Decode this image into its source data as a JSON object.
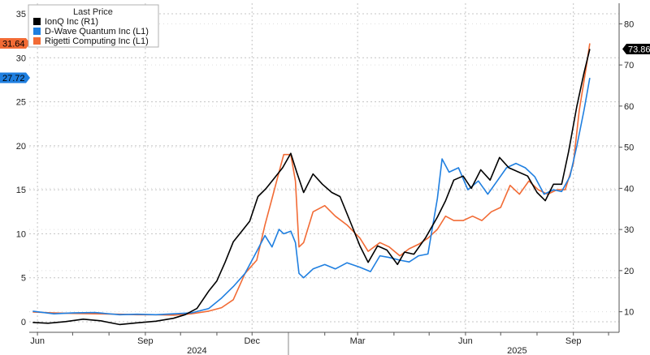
{
  "chart_data": {
    "type": "line",
    "legend": {
      "title": "Last Price",
      "placement": "top-left",
      "entries": [
        {
          "label": "IonQ Inc  (R1)",
          "color": "#000000"
        },
        {
          "label": "D-Wave Quantum Inc  (L1)",
          "color": "#1f7fe0"
        },
        {
          "label": "Rigetti Computing Inc  (L1)",
          "color": "#f26b35"
        }
      ]
    },
    "x_ticks": [
      {
        "date": "2024-06-01",
        "label": "Jun"
      },
      {
        "date": "2024-09-01",
        "label": "Sep"
      },
      {
        "date": "2024-12-01",
        "label": "Dec"
      },
      {
        "date": "2025-03-01",
        "label": "Mar"
      },
      {
        "date": "2025-06-01",
        "label": "Jun"
      },
      {
        "date": "2025-09-01",
        "label": "Sep"
      }
    ],
    "year_labels": [
      {
        "date": "2024-10-15",
        "label": "2024"
      },
      {
        "date": "2025-07-15",
        "label": "2025"
      }
    ],
    "xlim": [
      "2024-05-25",
      "2025-10-10"
    ],
    "ylim_left": [
      -1.2,
      36.2
    ],
    "yticks_left": [
      0,
      5,
      10,
      15,
      20,
      25,
      30,
      35
    ],
    "ylim_right": [
      5,
      85
    ],
    "yticks_right": [
      10,
      20,
      30,
      40,
      50,
      60,
      70,
      80
    ],
    "grid": true,
    "last_values": [
      {
        "series": "Rigetti Computing Inc",
        "label": "31.64",
        "side": "left",
        "value": 31.64,
        "color": "#f26b35"
      },
      {
        "series": "D-Wave Quantum Inc",
        "label": "27.72",
        "side": "left",
        "value": 27.72,
        "color": "#1f7fe0"
      },
      {
        "series": "IonQ Inc",
        "label": "73.86",
        "side": "right",
        "value": 73.86,
        "color": "#000000"
      }
    ],
    "series": [
      {
        "name": "IonQ Inc",
        "axis": "right",
        "color": "#000000",
        "points": [
          [
            "2024-05-28",
            7.4
          ],
          [
            "2024-06-10",
            7.2
          ],
          [
            "2024-06-25",
            7.6
          ],
          [
            "2024-07-10",
            8.2
          ],
          [
            "2024-07-25",
            7.8
          ],
          [
            "2024-08-10",
            6.9
          ],
          [
            "2024-08-25",
            7.3
          ],
          [
            "2024-09-10",
            7.7
          ],
          [
            "2024-09-25",
            8.4
          ],
          [
            "2024-10-05",
            9.3
          ],
          [
            "2024-10-15",
            10.8
          ],
          [
            "2024-10-25",
            15.0
          ],
          [
            "2024-11-01",
            17.5
          ],
          [
            "2024-11-08",
            22.0
          ],
          [
            "2024-11-15",
            27.0
          ],
          [
            "2024-11-22",
            29.5
          ],
          [
            "2024-11-29",
            32.0
          ],
          [
            "2024-12-06",
            38.0
          ],
          [
            "2024-12-13",
            40.0
          ],
          [
            "2024-12-20",
            42.5
          ],
          [
            "2024-12-27",
            45.0
          ],
          [
            "2025-01-03",
            48.5
          ],
          [
            "2025-01-08",
            44.0
          ],
          [
            "2025-01-14",
            39.0
          ],
          [
            "2025-01-22",
            43.5
          ],
          [
            "2025-01-30",
            41.0
          ],
          [
            "2025-02-07",
            39.0
          ],
          [
            "2025-02-14",
            38.0
          ],
          [
            "2025-02-24",
            31.0
          ],
          [
            "2025-03-03",
            26.0
          ],
          [
            "2025-03-10",
            22.0
          ],
          [
            "2025-03-18",
            26.0
          ],
          [
            "2025-03-26",
            25.0
          ],
          [
            "2025-04-04",
            21.5
          ],
          [
            "2025-04-10",
            24.5
          ],
          [
            "2025-04-18",
            24.0
          ],
          [
            "2025-04-28",
            28.0
          ],
          [
            "2025-05-08",
            33.0
          ],
          [
            "2025-05-15",
            37.0
          ],
          [
            "2025-05-22",
            42.0
          ],
          [
            "2025-05-30",
            43.0
          ],
          [
            "2025-06-06",
            40.0
          ],
          [
            "2025-06-14",
            44.5
          ],
          [
            "2025-06-22",
            42.0
          ],
          [
            "2025-06-30",
            47.5
          ],
          [
            "2025-07-08",
            45.0
          ],
          [
            "2025-07-16",
            44.0
          ],
          [
            "2025-07-24",
            43.0
          ],
          [
            "2025-08-01",
            39.0
          ],
          [
            "2025-08-08",
            37.0
          ],
          [
            "2025-08-15",
            41.0
          ],
          [
            "2025-08-22",
            41.0
          ],
          [
            "2025-08-28",
            49.0
          ],
          [
            "2025-09-04",
            60.0
          ],
          [
            "2025-09-10",
            68.0
          ],
          [
            "2025-09-15",
            73.86
          ]
        ]
      },
      {
        "name": "D-Wave Quantum Inc",
        "axis": "left",
        "color": "#1f7fe0",
        "points": [
          [
            "2024-05-28",
            1.2
          ],
          [
            "2024-06-15",
            0.9
          ],
          [
            "2024-07-01",
            1.0
          ],
          [
            "2024-07-20",
            1.05
          ],
          [
            "2024-08-10",
            0.8
          ],
          [
            "2024-08-25",
            0.85
          ],
          [
            "2024-09-10",
            0.8
          ],
          [
            "2024-09-25",
            0.9
          ],
          [
            "2024-10-10",
            1.0
          ],
          [
            "2024-10-25",
            1.5
          ],
          [
            "2024-11-05",
            2.7
          ],
          [
            "2024-11-15",
            4.0
          ],
          [
            "2024-11-25",
            5.5
          ],
          [
            "2024-12-05",
            8.0
          ],
          [
            "2024-12-12",
            9.8
          ],
          [
            "2024-12-18",
            8.5
          ],
          [
            "2024-12-24",
            10.5
          ],
          [
            "2024-12-28",
            10.0
          ],
          [
            "2025-01-03",
            10.3
          ],
          [
            "2025-01-07",
            9.0
          ],
          [
            "2025-01-10",
            5.5
          ],
          [
            "2025-01-14",
            5.0
          ],
          [
            "2025-01-22",
            6.0
          ],
          [
            "2025-02-01",
            6.5
          ],
          [
            "2025-02-10",
            6.0
          ],
          [
            "2025-02-20",
            6.7
          ],
          [
            "2025-03-03",
            6.2
          ],
          [
            "2025-03-12",
            5.7
          ],
          [
            "2025-03-20",
            7.5
          ],
          [
            "2025-03-28",
            7.3
          ],
          [
            "2025-04-06",
            7.0
          ],
          [
            "2025-04-14",
            6.8
          ],
          [
            "2025-04-22",
            7.5
          ],
          [
            "2025-04-30",
            7.7
          ],
          [
            "2025-05-08",
            14.0
          ],
          [
            "2025-05-12",
            18.5
          ],
          [
            "2025-05-18",
            17.0
          ],
          [
            "2025-05-26",
            17.5
          ],
          [
            "2025-06-03",
            15.0
          ],
          [
            "2025-06-12",
            16.0
          ],
          [
            "2025-06-20",
            14.5
          ],
          [
            "2025-06-28",
            16.0
          ],
          [
            "2025-07-06",
            17.5
          ],
          [
            "2025-07-14",
            18.0
          ],
          [
            "2025-07-22",
            17.5
          ],
          [
            "2025-07-30",
            16.5
          ],
          [
            "2025-08-07",
            14.5
          ],
          [
            "2025-08-15",
            15.0
          ],
          [
            "2025-08-22",
            14.8
          ],
          [
            "2025-08-29",
            16.5
          ],
          [
            "2025-09-04",
            20.0
          ],
          [
            "2025-09-10",
            24.0
          ],
          [
            "2025-09-15",
            27.72
          ]
        ]
      },
      {
        "name": "Rigetti Computing Inc",
        "axis": "left",
        "color": "#f26b35",
        "points": [
          [
            "2024-05-28",
            1.1
          ],
          [
            "2024-06-15",
            1.0
          ],
          [
            "2024-07-01",
            0.95
          ],
          [
            "2024-07-20",
            0.9
          ],
          [
            "2024-08-10",
            0.85
          ],
          [
            "2024-08-25",
            0.8
          ],
          [
            "2024-09-10",
            0.8
          ],
          [
            "2024-09-25",
            0.75
          ],
          [
            "2024-10-10",
            0.9
          ],
          [
            "2024-10-25",
            1.2
          ],
          [
            "2024-11-05",
            1.6
          ],
          [
            "2024-11-15",
            2.5
          ],
          [
            "2024-11-25",
            5.5
          ],
          [
            "2024-12-05",
            7.0
          ],
          [
            "2024-12-12",
            11.0
          ],
          [
            "2024-12-18",
            14.0
          ],
          [
            "2024-12-24",
            17.0
          ],
          [
            "2024-12-28",
            19.0
          ],
          [
            "2025-01-03",
            19.0
          ],
          [
            "2025-01-07",
            16.0
          ],
          [
            "2025-01-10",
            8.5
          ],
          [
            "2025-01-14",
            9.0
          ],
          [
            "2025-01-22",
            12.5
          ],
          [
            "2025-02-01",
            13.2
          ],
          [
            "2025-02-10",
            12.0
          ],
          [
            "2025-02-20",
            11.0
          ],
          [
            "2025-03-03",
            9.5
          ],
          [
            "2025-03-10",
            8.0
          ],
          [
            "2025-03-20",
            9.0
          ],
          [
            "2025-03-28",
            8.5
          ],
          [
            "2025-04-06",
            7.5
          ],
          [
            "2025-04-14",
            8.3
          ],
          [
            "2025-04-22",
            8.8
          ],
          [
            "2025-04-30",
            9.5
          ],
          [
            "2025-05-08",
            10.5
          ],
          [
            "2025-05-15",
            12.0
          ],
          [
            "2025-05-22",
            11.5
          ],
          [
            "2025-05-30",
            11.5
          ],
          [
            "2025-06-07",
            12.0
          ],
          [
            "2025-06-15",
            11.5
          ],
          [
            "2025-06-23",
            12.5
          ],
          [
            "2025-07-01",
            13.0
          ],
          [
            "2025-07-09",
            15.5
          ],
          [
            "2025-07-17",
            14.5
          ],
          [
            "2025-07-25",
            16.0
          ],
          [
            "2025-08-02",
            15.0
          ],
          [
            "2025-08-10",
            14.5
          ],
          [
            "2025-08-18",
            15.0
          ],
          [
            "2025-08-25",
            15.0
          ],
          [
            "2025-09-01",
            18.0
          ],
          [
            "2025-09-06",
            24.0
          ],
          [
            "2025-09-12",
            29.0
          ],
          [
            "2025-09-15",
            31.64
          ]
        ]
      }
    ]
  }
}
